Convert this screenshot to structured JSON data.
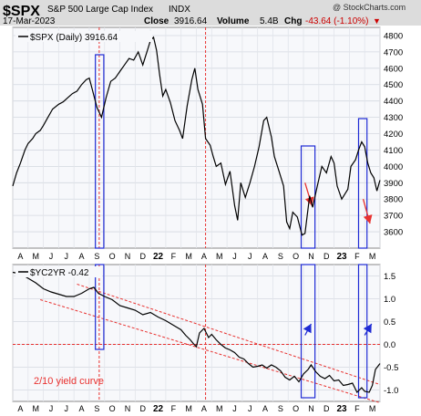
{
  "header": {
    "symbol": "$SPX",
    "name": "S&P 500 Large Cap Index",
    "exchange": "INDX",
    "watermark": "@ StockCharts.com",
    "date": "17-Mar-2023",
    "close_label": "Close",
    "close_value": "3916.64",
    "volume_label": "Volume",
    "volume_value": "5.4B",
    "chg_label": "Chg",
    "chg_value": "-43.64 (-1.10%)",
    "chg_arrow": "▼",
    "colors": {
      "header_bg": "#dcdcdc",
      "chg": "#cc0000"
    }
  },
  "x_axis": {
    "ticks": [
      "A",
      "M",
      "J",
      "J",
      "A",
      "S",
      "O",
      "N",
      "D",
      "22",
      "F",
      "M",
      "A",
      "M",
      "J",
      "J",
      "A",
      "S",
      "O",
      "N",
      "D",
      "23",
      "F",
      "M"
    ]
  },
  "annotation": {
    "text": "2/10 yield curve",
    "color": "#e8312f"
  },
  "chart_data": [
    {
      "type": "line",
      "legend": "$SPX (Daily) 3916.64",
      "y_ticks": [
        3600,
        3700,
        3800,
        3900,
        4000,
        4100,
        4200,
        4300,
        4400,
        4500,
        4600,
        4700,
        4800
      ],
      "ylim": [
        3500,
        4850
      ],
      "xlim": [
        0,
        24
      ],
      "grid": true,
      "line_color": "#000000",
      "points": [
        [
          0,
          3880
        ],
        [
          0.25,
          3960
        ],
        [
          0.5,
          4020
        ],
        [
          0.8,
          4100
        ],
        [
          1,
          4140
        ],
        [
          1.3,
          4170
        ],
        [
          1.5,
          4200
        ],
        [
          1.8,
          4220
        ],
        [
          2,
          4250
        ],
        [
          2.3,
          4300
        ],
        [
          2.6,
          4350
        ],
        [
          3,
          4380
        ],
        [
          3.3,
          4395
        ],
        [
          3.6,
          4420
        ],
        [
          3.9,
          4445
        ],
        [
          4.2,
          4460
        ],
        [
          4.5,
          4500
        ],
        [
          4.8,
          4530
        ],
        [
          5,
          4540
        ],
        [
          5.2,
          4470
        ],
        [
          5.5,
          4360
        ],
        [
          5.8,
          4300
        ],
        [
          6.1,
          4420
        ],
        [
          6.4,
          4520
        ],
        [
          6.7,
          4540
        ],
        [
          7,
          4580
        ],
        [
          7.3,
          4620
        ],
        [
          7.6,
          4660
        ],
        [
          7.9,
          4650
        ],
        [
          8.2,
          4700
        ],
        [
          8.5,
          4620
        ],
        [
          8.8,
          4710
        ],
        [
          9,
          4770
        ],
        [
          9.2,
          4790
        ],
        [
          9.4,
          4710
        ],
        [
          9.6,
          4560
        ],
        [
          9.8,
          4430
        ],
        [
          10,
          4470
        ],
        [
          10.3,
          4390
        ],
        [
          10.6,
          4280
        ],
        [
          10.9,
          4220
        ],
        [
          11.1,
          4170
        ],
        [
          11.4,
          4370
        ],
        [
          11.7,
          4530
        ],
        [
          11.9,
          4600
        ],
        [
          12.1,
          4470
        ],
        [
          12.4,
          4380
        ],
        [
          12.6,
          4170
        ],
        [
          12.9,
          4130
        ],
        [
          13.1,
          4060
        ],
        [
          13.3,
          4000
        ],
        [
          13.6,
          4020
        ],
        [
          13.9,
          3890
        ],
        [
          14.2,
          3970
        ],
        [
          14.5,
          3760
        ],
        [
          14.7,
          3670
        ],
        [
          14.9,
          3900
        ],
        [
          15.2,
          3810
        ],
        [
          15.5,
          3900
        ],
        [
          15.8,
          4000
        ],
        [
          16.1,
          4120
        ],
        [
          16.4,
          4280
        ],
        [
          16.6,
          4300
        ],
        [
          16.9,
          4180
        ],
        [
          17.1,
          4060
        ],
        [
          17.4,
          3970
        ],
        [
          17.7,
          3880
        ],
        [
          17.9,
          3660
        ],
        [
          18.1,
          3620
        ],
        [
          18.3,
          3720
        ],
        [
          18.6,
          3690
        ],
        [
          18.9,
          3580
        ],
        [
          19.1,
          3590
        ],
        [
          19.4,
          3820
        ],
        [
          19.6,
          3750
        ],
        [
          19.9,
          3880
        ],
        [
          20.2,
          4000
        ],
        [
          20.5,
          3960
        ],
        [
          20.8,
          4060
        ],
        [
          21,
          4020
        ],
        [
          21.2,
          3880
        ],
        [
          21.5,
          3800
        ],
        [
          21.7,
          3830
        ],
        [
          21.9,
          3860
        ],
        [
          22.1,
          4000
        ],
        [
          22.4,
          4040
        ],
        [
          22.6,
          4100
        ],
        [
          22.8,
          4150
        ],
        [
          23,
          4120
        ],
        [
          23.2,
          4020
        ],
        [
          23.4,
          3960
        ],
        [
          23.6,
          3930
        ],
        [
          23.8,
          3850
        ],
        [
          24,
          3916
        ]
      ],
      "drawings": {
        "rectangles_x": [
          [
            5.4,
            5.95
          ],
          [
            18.85,
            19.75
          ],
          [
            22.6,
            23.15
          ]
        ],
        "dashed_vlines_x": [
          5.65,
          12.6
        ],
        "down_arrows": [
          [
            19.1,
            3900,
            19.55,
            3760
          ],
          [
            22.9,
            3800,
            23.35,
            3650
          ]
        ]
      }
    },
    {
      "type": "line",
      "legend": "$YC2YR -0.42",
      "y_ticks": [
        -1.0,
        -0.5,
        0.0,
        0.5,
        1.0,
        1.5
      ],
      "y_tick_labels": [
        "-1.0",
        "-0.5",
        "0.0",
        "0.5",
        "1.0",
        "1.5"
      ],
      "ylim": [
        -1.25,
        1.75
      ],
      "xlim": [
        0,
        24
      ],
      "grid": true,
      "line_color": "#000000",
      "points": [
        [
          0,
          1.58
        ],
        [
          0.5,
          1.55
        ],
        [
          1,
          1.45
        ],
        [
          1.5,
          1.35
        ],
        [
          2,
          1.22
        ],
        [
          2.5,
          1.15
        ],
        [
          3,
          1.1
        ],
        [
          3.5,
          1.05
        ],
        [
          4,
          1.05
        ],
        [
          4.5,
          1.12
        ],
        [
          5,
          1.22
        ],
        [
          5.3,
          1.25
        ],
        [
          5.6,
          1.12
        ],
        [
          6,
          1.05
        ],
        [
          6.5,
          0.98
        ],
        [
          7,
          0.85
        ],
        [
          7.5,
          0.8
        ],
        [
          8,
          0.75
        ],
        [
          8.5,
          0.65
        ],
        [
          9,
          0.7
        ],
        [
          9.5,
          0.6
        ],
        [
          10,
          0.52
        ],
        [
          10.5,
          0.42
        ],
        [
          11,
          0.32
        ],
        [
          11.3,
          0.2
        ],
        [
          11.6,
          0.1
        ],
        [
          11.8,
          0.02
        ],
        [
          12,
          -0.05
        ],
        [
          12.2,
          0.25
        ],
        [
          12.5,
          0.35
        ],
        [
          12.8,
          0.15
        ],
        [
          13,
          0.22
        ],
        [
          13.3,
          0.1
        ],
        [
          13.6,
          0.0
        ],
        [
          13.9,
          -0.08
        ],
        [
          14.2,
          -0.12
        ],
        [
          14.5,
          -0.18
        ],
        [
          14.8,
          -0.28
        ],
        [
          15.1,
          -0.32
        ],
        [
          15.4,
          -0.42
        ],
        [
          15.7,
          -0.5
        ],
        [
          16,
          -0.48
        ],
        [
          16.3,
          -0.45
        ],
        [
          16.6,
          -0.52
        ],
        [
          16.9,
          -0.45
        ],
        [
          17.2,
          -0.5
        ],
        [
          17.5,
          -0.58
        ],
        [
          17.8,
          -0.72
        ],
        [
          18.1,
          -0.78
        ],
        [
          18.4,
          -0.7
        ],
        [
          18.7,
          -0.82
        ],
        [
          19,
          -0.65
        ],
        [
          19.3,
          -0.55
        ],
        [
          19.5,
          -0.45
        ],
        [
          19.8,
          -0.6
        ],
        [
          20.1,
          -0.7
        ],
        [
          20.4,
          -0.75
        ],
        [
          20.7,
          -0.68
        ],
        [
          21,
          -0.8
        ],
        [
          21.3,
          -0.78
        ],
        [
          21.6,
          -0.9
        ],
        [
          21.9,
          -0.88
        ],
        [
          22.2,
          -0.85
        ],
        [
          22.5,
          -1.05
        ],
        [
          22.8,
          -0.95
        ],
        [
          23,
          -1.03
        ],
        [
          23.3,
          -1.05
        ],
        [
          23.5,
          -0.9
        ],
        [
          23.7,
          -0.55
        ],
        [
          24,
          -0.42
        ]
      ],
      "drawings": {
        "rectangles_x": [
          [
            5.4,
            5.95
          ],
          [
            18.85,
            19.75
          ],
          [
            22.6,
            23.15
          ]
        ],
        "dashed_vlines_x": [
          5.65,
          12.6
        ],
        "zero_line": 0,
        "channel_upper": [
          [
            4.2,
            1.32
          ],
          [
            24,
            -0.88
          ]
        ],
        "channel_lower": [
          [
            1.8,
            0.98
          ],
          [
            24,
            -1.28
          ]
        ],
        "up_arrows": [
          [
            19.1,
            0.2,
            19.5,
            0.45
          ],
          [
            23,
            0.2,
            23.45,
            0.45
          ]
        ]
      }
    }
  ]
}
